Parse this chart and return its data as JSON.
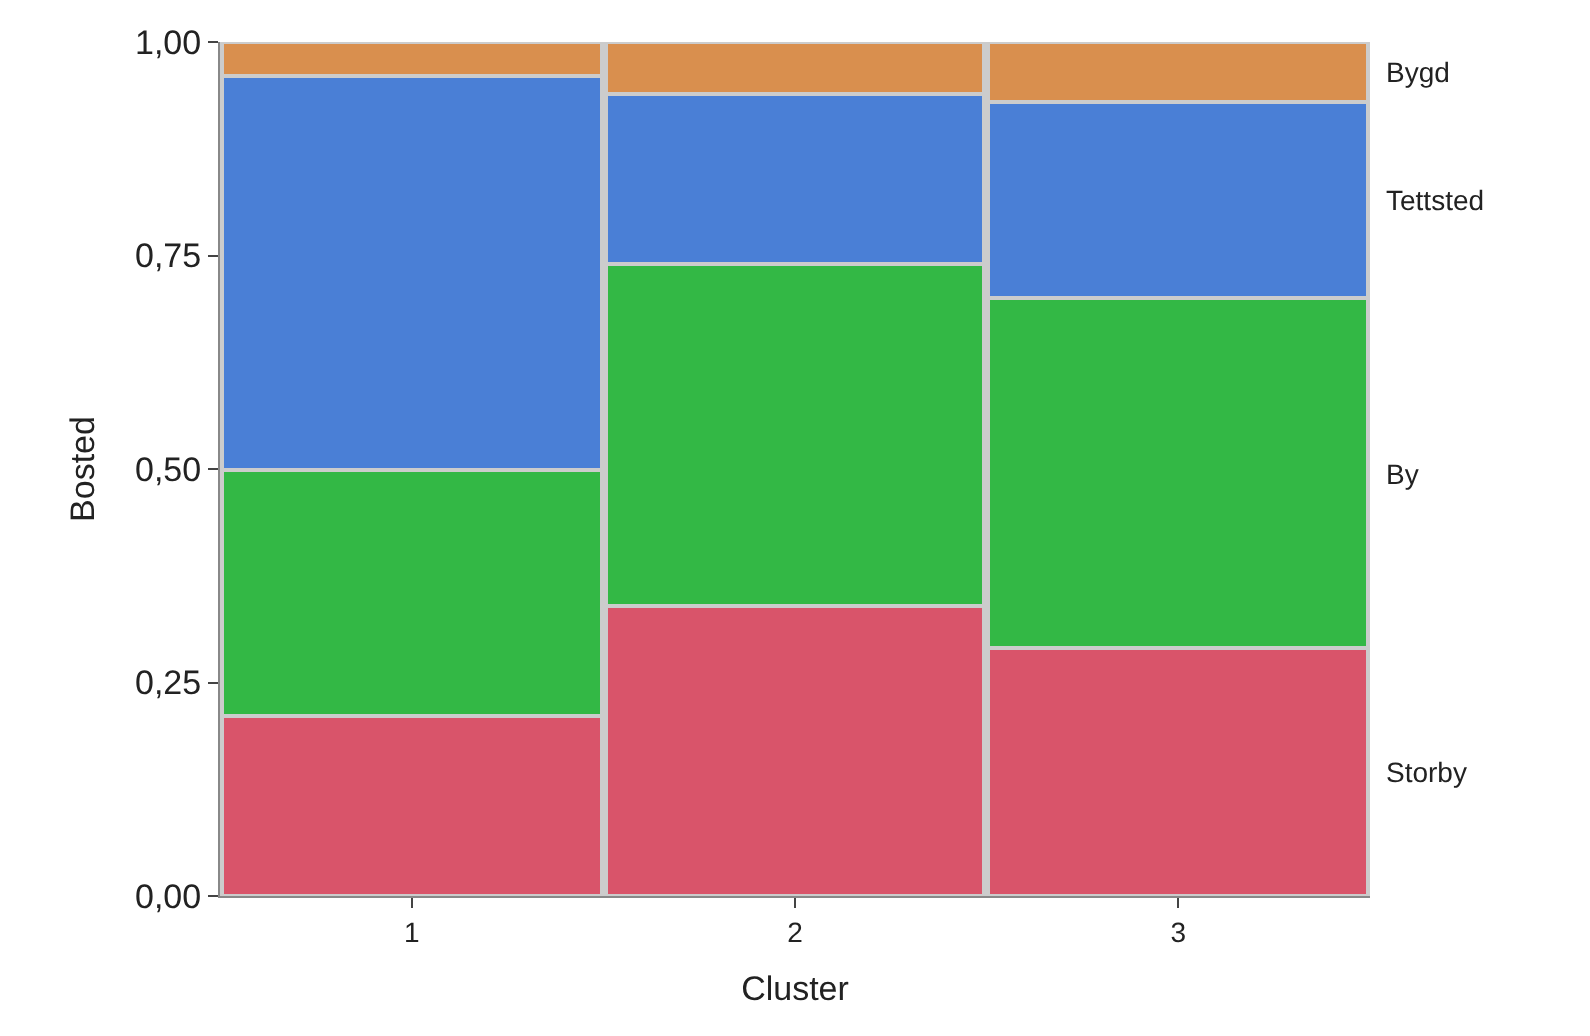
{
  "chart_data": {
    "type": "bar",
    "stacked": true,
    "xlabel": "Cluster",
    "ylabel": "Bosted",
    "categories": [
      "1",
      "2",
      "3"
    ],
    "series": [
      {
        "name": "Storby",
        "color": "#d9546a",
        "values": [
          0.21,
          0.34,
          0.29
        ]
      },
      {
        "name": "By",
        "color": "#33b845",
        "values": [
          0.29,
          0.4,
          0.41
        ]
      },
      {
        "name": "Tettsted",
        "color": "#4a7fd6",
        "values": [
          0.46,
          0.2,
          0.23
        ]
      },
      {
        "name": "Bygd",
        "color": "#d98f4e",
        "values": [
          0.04,
          0.06,
          0.07
        ]
      }
    ],
    "ylim": [
      0,
      1
    ],
    "yticks": [
      {
        "value": 0,
        "label": "0,00"
      },
      {
        "value": 0.25,
        "label": "0,25"
      },
      {
        "value": 0.5,
        "label": "0,50"
      },
      {
        "value": 0.75,
        "label": "0,75"
      },
      {
        "value": 1,
        "label": "1,00"
      }
    ],
    "legend": false
  }
}
